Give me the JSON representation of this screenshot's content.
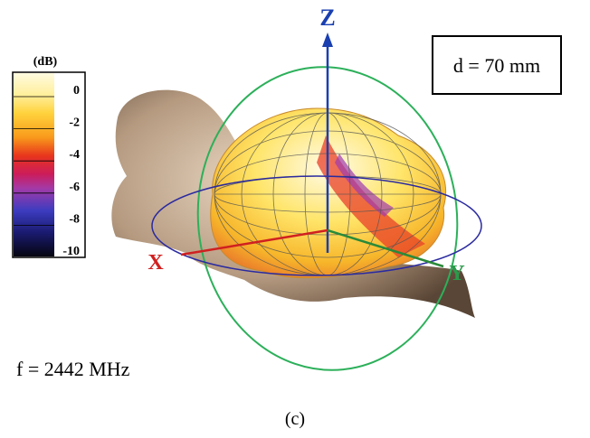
{
  "figure": {
    "colorbar": {
      "unit": "(dB)",
      "ticks": [
        0,
        -2,
        -4,
        -6,
        -8,
        -10
      ]
    },
    "axes": {
      "z": "Z",
      "x": "X",
      "y": "Y"
    },
    "distance": "d = 70 mm",
    "frequency": "f = 2442 MHz",
    "caption": "(c)"
  }
}
